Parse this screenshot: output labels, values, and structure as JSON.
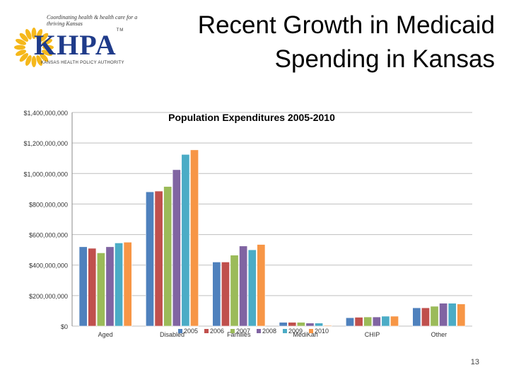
{
  "slide": {
    "title_line1": "Recent Growth in Medicaid",
    "title_line2": "Spending in Kansas",
    "page_number": "13"
  },
  "logo": {
    "tagline": "Coordinating health & health care for a thriving Kansas",
    "name": "KHPA",
    "tm": "TM",
    "subtitle": "KANSAS HEALTH POLICY AUTHORITY"
  },
  "colors": {
    "2005": "#4f81bd",
    "2006": "#c0504d",
    "2007": "#9bbb59",
    "2008": "#8064a2",
    "2009": "#4bacc6",
    "2010": "#f79646",
    "sun": "#f5b81c"
  },
  "chart_data": {
    "type": "bar",
    "title": "Population Expenditures 2005-2010",
    "categories": [
      "Aged",
      "Disabled",
      "Families",
      "MediKan",
      "CHIP",
      "Other"
    ],
    "series": [
      {
        "name": "2005",
        "values": [
          520000000,
          880000000,
          420000000,
          25000000,
          55000000,
          120000000
        ]
      },
      {
        "name": "2006",
        "values": [
          510000000,
          885000000,
          420000000,
          25000000,
          58000000,
          120000000
        ]
      },
      {
        "name": "2007",
        "values": [
          480000000,
          915000000,
          465000000,
          25000000,
          60000000,
          130000000
        ]
      },
      {
        "name": "2008",
        "values": [
          520000000,
          1025000000,
          525000000,
          20000000,
          60000000,
          150000000
        ]
      },
      {
        "name": "2009",
        "values": [
          545000000,
          1125000000,
          500000000,
          20000000,
          65000000,
          150000000
        ]
      },
      {
        "name": "2010",
        "values": [
          550000000,
          1155000000,
          535000000,
          5000000,
          65000000,
          145000000
        ]
      }
    ],
    "y_tick_labels": [
      "$0",
      "$200,000,000",
      "$400,000,000",
      "$600,000,000",
      "$800,000,000",
      "$1,000,000,000",
      "$1,200,000,000",
      "$1,400,000,000"
    ],
    "ylim": [
      0,
      1400000000
    ],
    "y_step": 200000000,
    "legend_position": "bottom-center",
    "xlabel": "",
    "ylabel": ""
  }
}
